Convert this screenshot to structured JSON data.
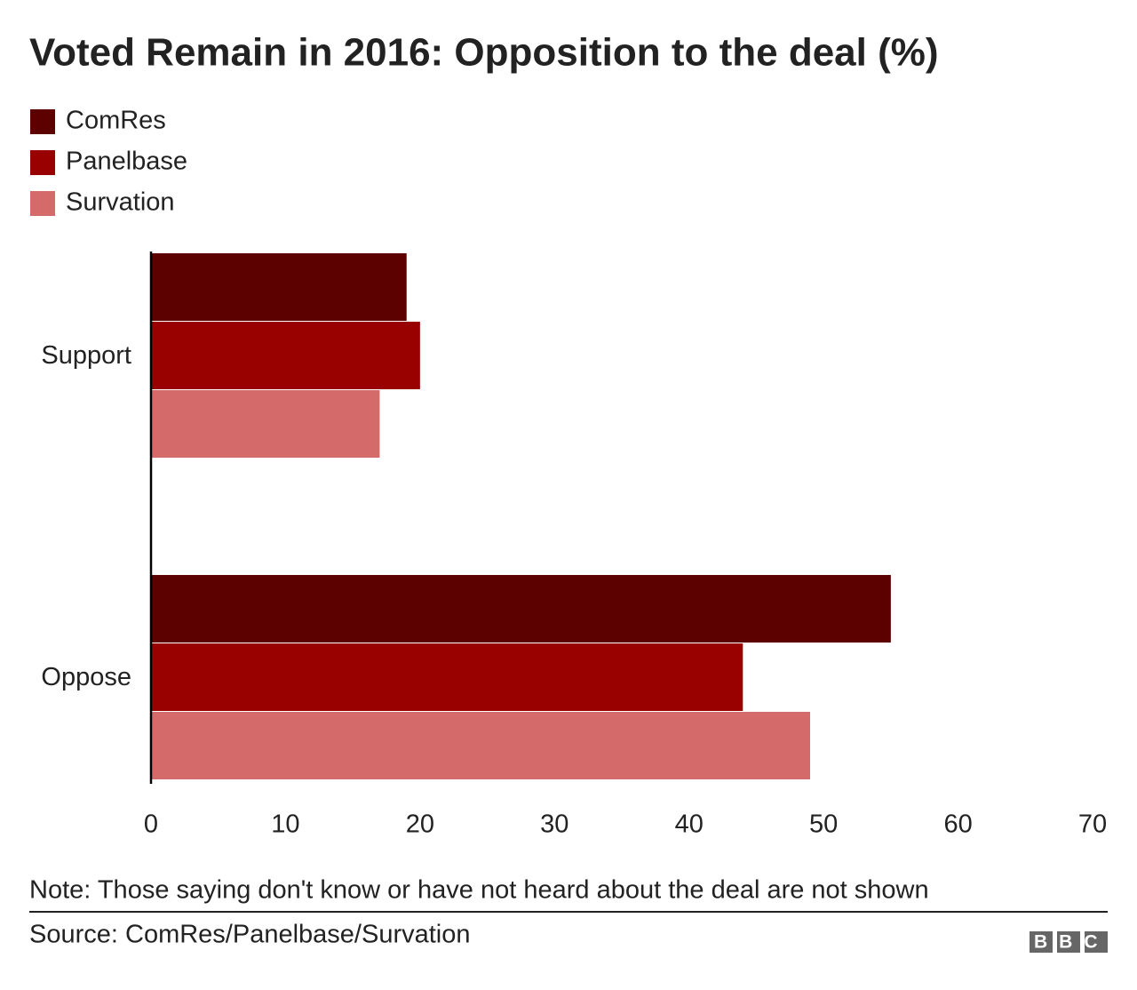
{
  "chart_data": {
    "type": "hbar",
    "title": "Voted Remain in 2016: Opposition to the deal (%)",
    "categories": [
      "Support",
      "Oppose"
    ],
    "series": [
      {
        "name": "ComRes",
        "color": "#5c0000",
        "values": [
          19,
          55
        ]
      },
      {
        "name": "Panelbase",
        "color": "#990000",
        "values": [
          20,
          44
        ]
      },
      {
        "name": "Survation",
        "color": "#d46a6a",
        "values": [
          17,
          49
        ]
      }
    ],
    "xlim": [
      0,
      70
    ],
    "xticks": [
      0,
      10,
      20,
      30,
      40,
      50,
      60,
      70
    ],
    "grid": false,
    "note": "Note: Those saying don't know or have not heard about the deal are not shown",
    "source": "Source: ComRes/Panelbase/Survation",
    "logo": "BBC"
  }
}
